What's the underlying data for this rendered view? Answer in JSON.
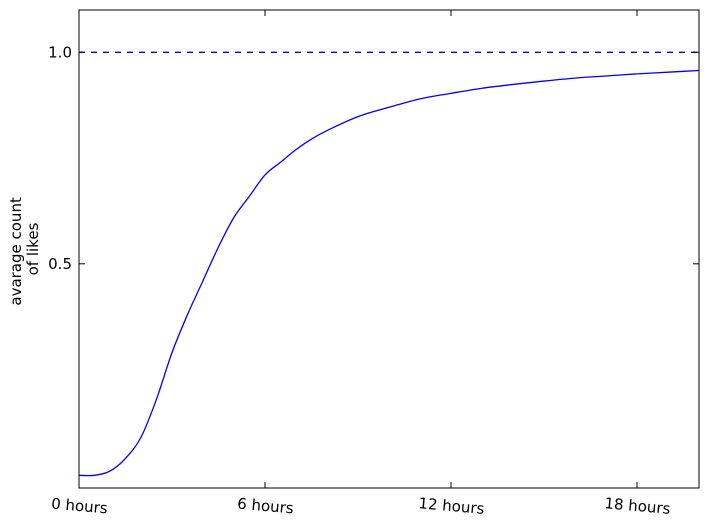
{
  "chart_data": {
    "type": "line",
    "title": "",
    "xlabel": "",
    "ylabel": [
      "avarage count",
      "of likes"
    ],
    "xlim": [
      0,
      20
    ],
    "ylim": [
      -0.03,
      1.1
    ],
    "xticks": [
      {
        "value": 0,
        "label": "0 hours"
      },
      {
        "value": 6,
        "label": "6 hours"
      },
      {
        "value": 12,
        "label": "12 hours"
      },
      {
        "value": 18,
        "label": "18 hours"
      }
    ],
    "yticks": [
      {
        "value": 0.5,
        "label": "0.5"
      },
      {
        "value": 1.0,
        "label": "1.0"
      }
    ],
    "grid": false,
    "series": [
      {
        "color": "#0000ff",
        "style": "solid",
        "x": [
          0,
          0.5,
          1.0,
          1.5,
          2.0,
          2.5,
          3.0,
          3.5,
          4.0,
          4.5,
          5.0,
          5.5,
          6.0,
          6.5,
          7.0,
          7.5,
          8.0,
          9.0,
          10.0,
          11.0,
          12.0,
          13.0,
          14.0,
          15.0,
          16.0,
          17.0,
          18.0,
          19.0,
          20.0
        ],
        "y": [
          0.0,
          0.0,
          0.01,
          0.04,
          0.09,
          0.18,
          0.29,
          0.38,
          0.46,
          0.54,
          0.61,
          0.66,
          0.71,
          0.74,
          0.77,
          0.795,
          0.815,
          0.848,
          0.87,
          0.89,
          0.903,
          0.915,
          0.924,
          0.932,
          0.939,
          0.944,
          0.949,
          0.953,
          0.957
        ]
      },
      {
        "color": "#0000ff",
        "style": "dashed",
        "x": [
          0,
          20
        ],
        "y": [
          1.0,
          1.0
        ]
      }
    ],
    "colors": {
      "line": "#0000ff",
      "axes": "#000000"
    }
  }
}
